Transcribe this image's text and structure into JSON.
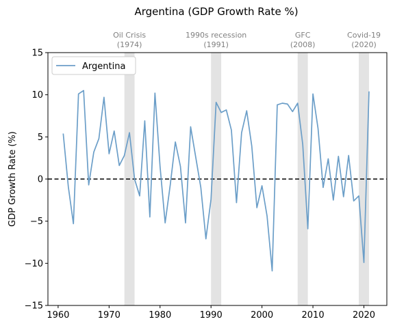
{
  "chart_data": {
    "type": "line",
    "title": "Argentina (GDP Growth Rate %)",
    "xlabel": "",
    "ylabel": "GDP Growth Rate (%)",
    "xlim": [
      1958,
      2024.5
    ],
    "ylim": [
      -15,
      15
    ],
    "xticks": [
      1960,
      1970,
      1980,
      1990,
      2000,
      2010,
      2020
    ],
    "yticks": [
      -15,
      -10,
      -5,
      0,
      5,
      10,
      15
    ],
    "grid": false,
    "legend": {
      "position": "top-left",
      "entries": [
        "Argentina"
      ]
    },
    "colors": {
      "line": "#6b9ec8",
      "zero_line": "#000000",
      "band": "#d9d9d9",
      "annotation": "#7f7f7f"
    },
    "reference_line": {
      "y": 0,
      "style": "dashed"
    },
    "series": [
      {
        "name": "Argentina",
        "x": [
          1961,
          1962,
          1963,
          1964,
          1965,
          1966,
          1967,
          1968,
          1969,
          1970,
          1971,
          1972,
          1973,
          1974,
          1975,
          1976,
          1977,
          1978,
          1979,
          1980,
          1981,
          1982,
          1983,
          1984,
          1985,
          1986,
          1987,
          1988,
          1989,
          1990,
          1991,
          1992,
          1993,
          1994,
          1995,
          1996,
          1997,
          1998,
          1999,
          2000,
          2001,
          2002,
          2003,
          2004,
          2005,
          2006,
          2007,
          2008,
          2009,
          2010,
          2011,
          2012,
          2013,
          2014,
          2015,
          2016,
          2017,
          2018,
          2019,
          2020,
          2021
        ],
        "values": [
          5.4,
          -0.9,
          -5.3,
          10.1,
          10.5,
          -0.7,
          3.2,
          4.8,
          9.7,
          3.0,
          5.7,
          1.6,
          2.8,
          5.5,
          0.0,
          -2.0,
          6.9,
          -4.5,
          10.2,
          1.5,
          -5.2,
          -0.7,
          4.4,
          1.5,
          -5.2,
          6.2,
          2.6,
          -1.0,
          -7.1,
          -2.4,
          9.1,
          7.9,
          8.2,
          5.8,
          -2.8,
          5.5,
          8.1,
          3.9,
          -3.4,
          -0.8,
          -4.4,
          -10.9,
          8.8,
          9.0,
          8.9,
          8.0,
          9.0,
          4.1,
          -5.9,
          10.1,
          6.0,
          -1.0,
          2.4,
          -2.5,
          2.7,
          -2.1,
          2.8,
          -2.6,
          -2.0,
          -9.9,
          10.4
        ]
      }
    ],
    "annotations": [
      {
        "label": "Oil Crisis",
        "year_label": "(1974)",
        "x_start": 1973,
        "x_end": 1975
      },
      {
        "label": "1990s recession",
        "year_label": "(1991)",
        "x_start": 1990,
        "x_end": 1992
      },
      {
        "label": "GFC",
        "year_label": "(2008)",
        "x_start": 2007,
        "x_end": 2009
      },
      {
        "label": "Covid-19",
        "year_label": "(2020)",
        "x_start": 2019,
        "x_end": 2021
      }
    ]
  }
}
